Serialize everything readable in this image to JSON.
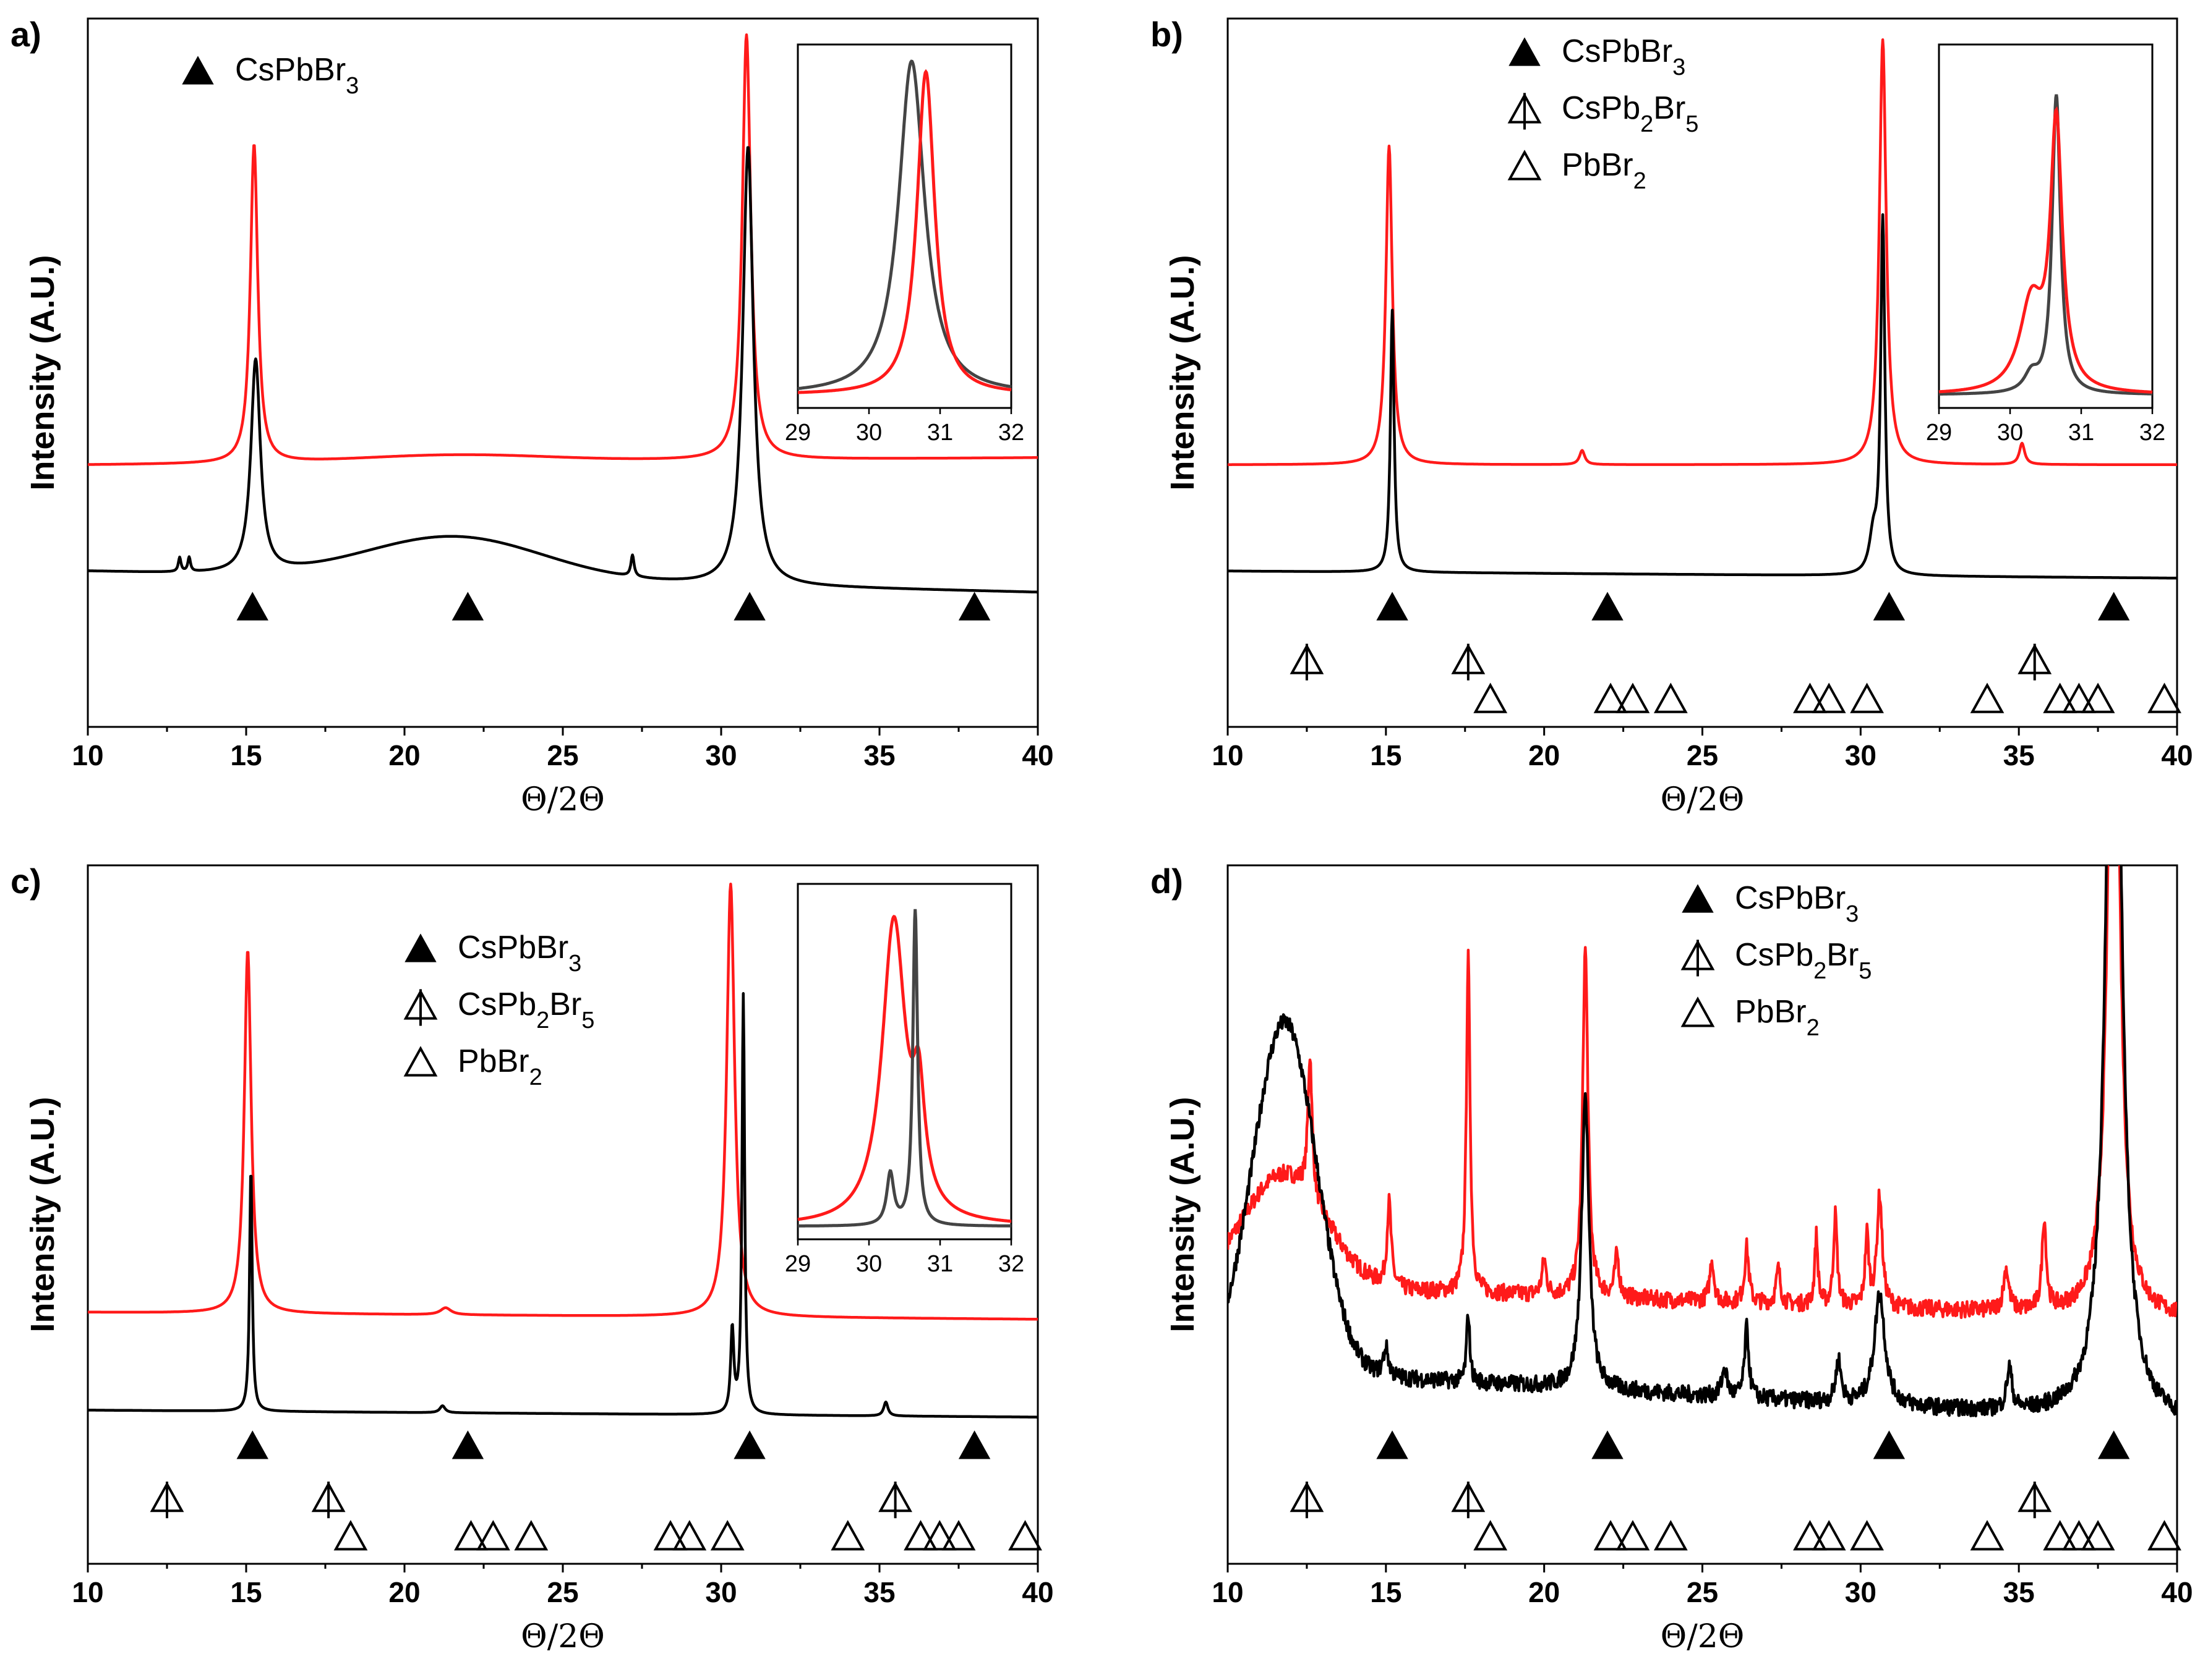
{
  "colors": {
    "red": "#ff1a1a",
    "black": "#000000",
    "inset_black": "#444444"
  },
  "chart_data": [
    {
      "type": "line",
      "panel": "a)",
      "xlabel": "Θ/2Θ",
      "ylabel": "Intensity (A.U.)",
      "xlim": [
        10,
        40
      ],
      "xticks": [
        "10",
        "15",
        "20",
        "25",
        "30",
        "35",
        "40"
      ],
      "legend": [
        {
          "symbol": "filled-triangle",
          "label": "CsPbBr",
          "sub": "3"
        }
      ],
      "series": [
        {
          "name": "red",
          "color": "#ff1a1a",
          "baseline": 0.37,
          "peaks": [
            [
              15.25,
              0.45,
              0.14
            ],
            [
              30.8,
              0.6,
              0.16
            ],
            [
              21.6,
              0.01,
              3.0
            ]
          ],
          "tail": 0.01
        },
        {
          "name": "black",
          "color": "#000000",
          "baseline": 0.22,
          "peaks": [
            [
              15.3,
              0.3,
              0.18
            ],
            [
              30.85,
              0.62,
              0.2
            ],
            [
              21.6,
              0.06,
              2.8
            ],
            [
              12.9,
              0.02,
              0.05
            ],
            [
              13.2,
              0.02,
              0.05
            ],
            [
              27.2,
              0.03,
              0.06
            ]
          ],
          "tail": -0.03
        }
      ],
      "markers": [
        {
          "row": 0,
          "symbol": "filled-triangle",
          "x": [
            15.2,
            22.0,
            30.9,
            38.0
          ]
        }
      ],
      "inset": {
        "xlim": [
          29,
          32
        ],
        "xticks": [
          "29",
          "30",
          "31",
          "32"
        ],
        "series": [
          {
            "name": "black",
            "color": "#444444",
            "peaks": [
              [
                30.6,
                0.95,
                0.22
              ]
            ]
          },
          {
            "name": "red",
            "color": "#ff1a1a",
            "peaks": [
              [
                30.8,
                0.92,
                0.15
              ]
            ]
          }
        ]
      }
    },
    {
      "type": "line",
      "panel": "b)",
      "xlabel": "Θ/2Θ",
      "ylabel": "Intensity (A.U.)",
      "xlim": [
        10,
        40
      ],
      "xticks": [
        "10",
        "15",
        "20",
        "25",
        "30",
        "35",
        "40"
      ],
      "legend": [
        {
          "symbol": "filled-triangle",
          "label": "CsPbBr",
          "sub": "3"
        },
        {
          "symbol": "crossed-triangle",
          "label": "CsPb",
          "sub": "2",
          "label2": "Br",
          "sub2": "5"
        },
        {
          "symbol": "open-triangle",
          "label": "PbBr",
          "sub": "2"
        }
      ],
      "series": [
        {
          "name": "red",
          "color": "#ff1a1a",
          "baseline": 0.37,
          "peaks": [
            [
              15.1,
              0.45,
              0.12
            ],
            [
              30.7,
              0.6,
              0.13
            ],
            [
              21.2,
              0.02,
              0.1
            ],
            [
              35.1,
              0.03,
              0.1
            ]
          ],
          "tail": 0.0
        },
        {
          "name": "black",
          "color": "#000000",
          "baseline": 0.22,
          "peaks": [
            [
              15.2,
              0.37,
              0.07
            ],
            [
              30.7,
              0.5,
              0.08
            ],
            [
              30.4,
              0.05,
              0.15
            ]
          ],
          "tail": -0.01
        }
      ],
      "markers": [
        {
          "row": 0,
          "symbol": "filled-triangle",
          "x": [
            15.2,
            22.0,
            30.9,
            38.0
          ]
        },
        {
          "row": 1,
          "symbol": "crossed-triangle",
          "x": [
            12.5,
            17.6,
            35.5
          ]
        },
        {
          "row": 2,
          "symbol": "open-triangle",
          "x": [
            18.3,
            22.1,
            22.8,
            24.0,
            28.4,
            29.0,
            30.2,
            34.0,
            36.3,
            36.9,
            37.5,
            39.6
          ]
        }
      ],
      "inset": {
        "xlim": [
          29,
          32
        ],
        "xticks": [
          "29",
          "30",
          "31",
          "32"
        ],
        "series": [
          {
            "name": "black",
            "color": "#444444",
            "peaks": [
              [
                30.65,
                0.85,
                0.07
              ],
              [
                30.3,
                0.05,
                0.12
              ]
            ]
          },
          {
            "name": "red",
            "color": "#ff1a1a",
            "peaks": [
              [
                30.65,
                0.75,
                0.1
              ],
              [
                30.3,
                0.25,
                0.2
              ],
              [
                30.5,
                0.0,
                0.5
              ]
            ]
          }
        ]
      }
    },
    {
      "type": "line",
      "panel": "c)",
      "xlabel": "Θ/2Θ",
      "ylabel": "Intensity (A.U.)",
      "xlim": [
        10,
        40
      ],
      "xticks": [
        "10",
        "15",
        "20",
        "25",
        "30",
        "35",
        "40"
      ],
      "legend": [
        {
          "symbol": "filled-triangle",
          "label": "CsPbBr",
          "sub": "3"
        },
        {
          "symbol": "crossed-triangle",
          "label": "CsPb",
          "sub": "2",
          "label2": "Br",
          "sub2": "5"
        },
        {
          "symbol": "open-triangle",
          "label": "PbBr",
          "sub": "2"
        }
      ],
      "series": [
        {
          "name": "red",
          "color": "#ff1a1a",
          "baseline": 0.36,
          "peaks": [
            [
              15.05,
              0.52,
              0.13
            ],
            [
              30.3,
              0.62,
              0.15
            ],
            [
              21.3,
              0.01,
              0.2
            ]
          ],
          "tail": -0.01
        },
        {
          "name": "black",
          "color": "#000000",
          "baseline": 0.22,
          "peaks": [
            [
              15.15,
              0.35,
              0.05
            ],
            [
              30.7,
              0.6,
              0.05
            ],
            [
              30.35,
              0.12,
              0.06
            ],
            [
              21.2,
              0.01,
              0.1
            ],
            [
              35.2,
              0.02,
              0.08
            ]
          ],
          "tail": -0.01
        }
      ],
      "markers": [
        {
          "row": 0,
          "symbol": "filled-triangle",
          "x": [
            15.2,
            22.0,
            30.9,
            38.0
          ]
        },
        {
          "row": 1,
          "symbol": "crossed-triangle",
          "x": [
            12.5,
            17.6,
            35.5
          ]
        },
        {
          "row": 2,
          "symbol": "open-triangle",
          "x": [
            18.3,
            22.1,
            22.8,
            24.0,
            28.4,
            29.0,
            30.2,
            34.0,
            36.3,
            36.9,
            37.5,
            39.6
          ]
        }
      ],
      "inset": {
        "xlim": [
          29,
          32
        ],
        "xticks": [
          "29",
          "30",
          "31",
          "32"
        ],
        "series": [
          {
            "name": "red",
            "color": "#ff1a1a",
            "peaks": [
              [
                30.35,
                0.88,
                0.2
              ],
              [
                30.7,
                0.3,
                0.1
              ]
            ]
          },
          {
            "name": "black",
            "color": "#444444",
            "peaks": [
              [
                30.65,
                0.92,
                0.04
              ],
              [
                30.3,
                0.15,
                0.06
              ]
            ]
          }
        ]
      }
    },
    {
      "type": "line",
      "panel": "d)",
      "xlabel": "Θ/2Θ",
      "ylabel": "Intensity (A.U.)",
      "xlim": [
        10,
        40
      ],
      "xticks": [
        "10",
        "15",
        "20",
        "25",
        "30",
        "35",
        "40"
      ],
      "legend": [
        {
          "symbol": "filled-triangle",
          "label": "CsPbBr",
          "sub": "3"
        },
        {
          "symbol": "crossed-triangle",
          "label": "CsPb",
          "sub": "2",
          "label2": "Br",
          "sub2": "5"
        },
        {
          "symbol": "open-triangle",
          "label": "PbBr",
          "sub": "2"
        }
      ],
      "series": [
        {
          "name": "red",
          "color": "#ff1a1a",
          "baseline": 0.4,
          "noise": 0.012,
          "peaks": [
            [
              11.8,
              0.16,
              1.3
            ],
            [
              12.6,
              0.2,
              0.08
            ],
            [
              15.1,
              0.12,
              0.08
            ],
            [
              17.6,
              0.48,
              0.07
            ],
            [
              20.0,
              0.05,
              0.08
            ],
            [
              21.3,
              0.5,
              0.1
            ],
            [
              22.3,
              0.06,
              0.08
            ],
            [
              25.3,
              0.06,
              0.08
            ],
            [
              26.4,
              0.08,
              0.08
            ],
            [
              27.4,
              0.05,
              0.08
            ],
            [
              28.6,
              0.1,
              0.06
            ],
            [
              29.2,
              0.13,
              0.07
            ],
            [
              30.2,
              0.1,
              0.07
            ],
            [
              30.6,
              0.16,
              0.1
            ],
            [
              34.6,
              0.06,
              0.1
            ],
            [
              35.8,
              0.13,
              0.08
            ],
            [
              38.0,
              1.2,
              0.2
            ]
          ],
          "tail": -0.05
        },
        {
          "name": "black",
          "color": "#000000",
          "baseline": 0.28,
          "noise": 0.012,
          "peaks": [
            [
              11.8,
              0.5,
              1.0
            ],
            [
              15.0,
              0.04,
              0.1
            ],
            [
              17.6,
              0.1,
              0.06
            ],
            [
              21.3,
              0.42,
              0.14
            ],
            [
              25.7,
              0.04,
              0.1
            ],
            [
              26.4,
              0.1,
              0.08
            ],
            [
              29.3,
              0.06,
              0.1
            ],
            [
              30.6,
              0.16,
              0.2
            ],
            [
              34.7,
              0.06,
              0.1
            ],
            [
              38.0,
              1.5,
              0.25
            ]
          ],
          "tail": -0.08
        }
      ],
      "markers": [
        {
          "row": 0,
          "symbol": "filled-triangle",
          "x": [
            15.2,
            22.0,
            30.9,
            38.0
          ]
        },
        {
          "row": 1,
          "symbol": "crossed-triangle",
          "x": [
            12.5,
            17.6,
            35.5
          ]
        },
        {
          "row": 2,
          "symbol": "open-triangle",
          "x": [
            18.3,
            22.1,
            22.8,
            24.0,
            28.4,
            29.0,
            30.2,
            34.0,
            36.3,
            36.9,
            37.5,
            39.6
          ]
        }
      ]
    }
  ]
}
